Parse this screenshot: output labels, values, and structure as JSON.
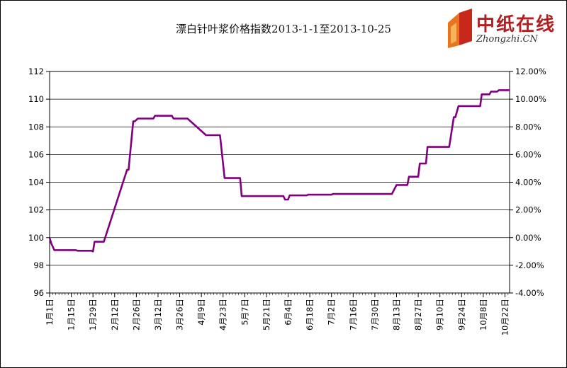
{
  "logo": {
    "brand_cn": "中纸在线",
    "brand_en": "Zhongzhi.CN"
  },
  "chart_data": {
    "type": "line",
    "title": "漂白针叶浆价格指数2013-1-1至2013-10-25",
    "xlabel": "",
    "ylabel": "",
    "ylim": [
      96,
      112
    ],
    "yticks": [
      96,
      98,
      100,
      102,
      104,
      106,
      108,
      110,
      112
    ],
    "y2lim": [
      -4,
      12
    ],
    "y2ticks": [
      "-4.00%",
      "-2.00%",
      "0.00%",
      "2.00%",
      "4.00%",
      "6.00%",
      "8.00%",
      "10.00%",
      "12.00%"
    ],
    "xlim": [
      "2013-01-01",
      "2013-10-25"
    ],
    "xticks": [
      {
        "date": "2013-01-01",
        "label": "1月1日"
      },
      {
        "date": "2013-01-15",
        "label": "1月15日"
      },
      {
        "date": "2013-01-29",
        "label": "1月29日"
      },
      {
        "date": "2013-02-12",
        "label": "2月12日"
      },
      {
        "date": "2013-02-26",
        "label": "2月26日"
      },
      {
        "date": "2013-03-12",
        "label": "3月12日"
      },
      {
        "date": "2013-03-26",
        "label": "3月26日"
      },
      {
        "date": "2013-04-09",
        "label": "4月9日"
      },
      {
        "date": "2013-04-23",
        "label": "4月23日"
      },
      {
        "date": "2013-05-07",
        "label": "5月7日"
      },
      {
        "date": "2013-05-21",
        "label": "5月21日"
      },
      {
        "date": "2013-06-04",
        "label": "6月4日"
      },
      {
        "date": "2013-06-18",
        "label": "6月18日"
      },
      {
        "date": "2013-07-02",
        "label": "7月2日"
      },
      {
        "date": "2013-07-16",
        "label": "7月16日"
      },
      {
        "date": "2013-07-30",
        "label": "7月30日"
      },
      {
        "date": "2013-08-13",
        "label": "8月13日"
      },
      {
        "date": "2013-08-27",
        "label": "8月27日"
      },
      {
        "date": "2013-09-10",
        "label": "9月10日"
      },
      {
        "date": "2013-09-24",
        "label": "9月24日"
      },
      {
        "date": "2013-10-08",
        "label": "10月8日"
      },
      {
        "date": "2013-10-22",
        "label": "10月22日"
      }
    ],
    "grid": true,
    "line_color": "#800080",
    "series": [
      {
        "x": [
          "2013-01-01",
          "2013-01-02",
          "2013-01-04",
          "2013-01-18",
          "2013-01-19",
          "2013-01-28",
          "2013-01-29",
          "2013-01-30",
          "2013-02-05",
          "2013-02-20",
          "2013-02-21",
          "2013-02-24",
          "2013-02-25",
          "2013-02-27",
          "2013-03-09",
          "2013-03-10",
          "2013-03-21",
          "2013-03-22",
          "2013-03-30",
          "2013-03-31",
          "2013-04-12",
          "2013-04-13",
          "2013-04-14",
          "2013-04-20",
          "2013-04-21",
          "2013-04-24",
          "2013-05-04",
          "2013-05-05",
          "2013-06-01",
          "2013-06-02",
          "2013-06-04",
          "2013-06-05",
          "2013-06-16",
          "2013-06-17",
          "2013-07-02",
          "2013-07-03",
          "2013-08-10",
          "2013-08-13",
          "2013-08-20",
          "2013-08-21",
          "2013-08-27",
          "2013-08-28",
          "2013-09-01",
          "2013-09-02",
          "2013-09-09",
          "2013-09-16",
          "2013-09-19",
          "2013-09-20",
          "2013-09-22",
          "2013-10-06",
          "2013-10-07",
          "2013-10-12",
          "2013-10-13",
          "2013-10-17",
          "2013-10-18",
          "2013-10-25"
        ],
        "y": [
          100.0,
          99.6,
          99.1,
          99.1,
          99.05,
          99.05,
          99.0,
          99.7,
          99.7,
          104.9,
          104.9,
          108.4,
          108.4,
          108.6,
          108.6,
          108.8,
          108.8,
          108.6,
          108.6,
          108.6,
          107.4,
          107.4,
          107.4,
          107.4,
          107.4,
          104.3,
          104.3,
          103.0,
          103.0,
          102.75,
          102.75,
          103.05,
          103.05,
          103.1,
          103.1,
          103.15,
          103.15,
          103.8,
          103.8,
          104.4,
          104.4,
          105.35,
          105.35,
          106.55,
          106.55,
          106.55,
          108.7,
          108.7,
          109.5,
          109.5,
          110.35,
          110.35,
          110.55,
          110.55,
          110.65,
          110.65
        ]
      }
    ]
  }
}
